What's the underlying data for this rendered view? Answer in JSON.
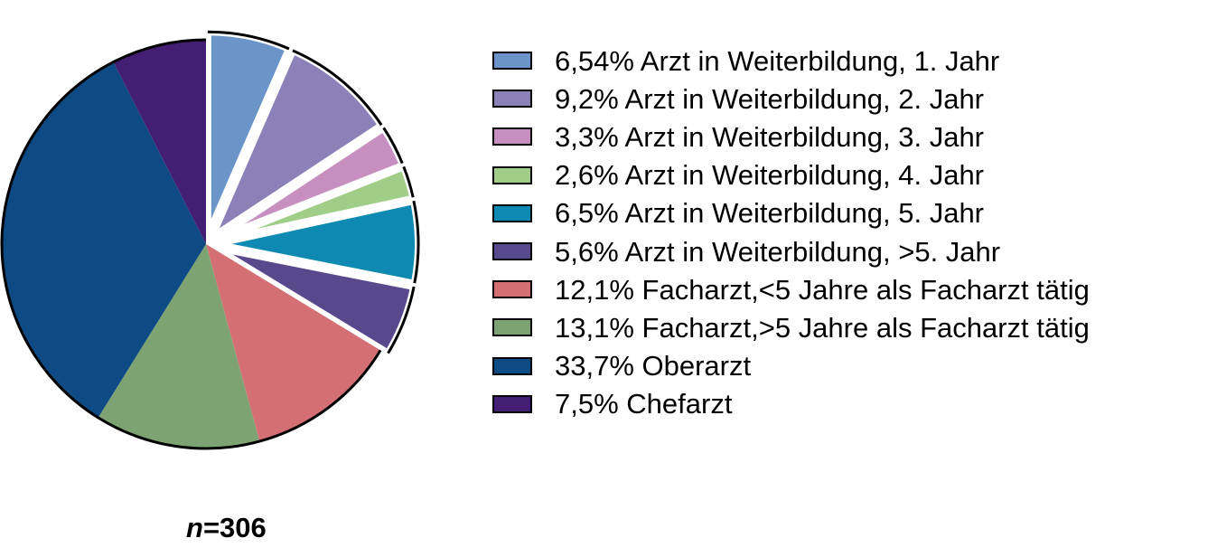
{
  "chart_data": {
    "type": "pie",
    "title": "",
    "note": "n=306",
    "n_prefix": "n",
    "n_value": "=306",
    "slices": [
      {
        "label": "6,54% Arzt in Weiterbildung, 1. Jahr",
        "value": 6.54,
        "color": "#6b95c9",
        "exploded": true
      },
      {
        "label": "9,2% Arzt in Weiterbildung, 2. Jahr",
        "value": 9.2,
        "color": "#8b80b8",
        "exploded": true
      },
      {
        "label": "3,3% Arzt in Weiterbildung, 3. Jahr",
        "value": 3.3,
        "color": "#c68fc0",
        "exploded": true
      },
      {
        "label": "2,6% Arzt in Weiterbildung, 4. Jahr",
        "value": 2.6,
        "color": "#a0ce88",
        "exploded": true
      },
      {
        "label": "6,5% Arzt in Weiterbildung, 5. Jahr",
        "value": 6.5,
        "color": "#0e8ab2",
        "exploded": true
      },
      {
        "label": "5,6% Arzt in Weiterbildung, >5. Jahr",
        "value": 5.6,
        "color": "#58488c",
        "exploded": true
      },
      {
        "label": "12,1% Facharzt,<5 Jahre als Facharzt tätig",
        "value": 12.1,
        "color": "#d46f74",
        "exploded": false
      },
      {
        "label": "13,1% Facharzt,>5 Jahre als Facharzt tätig",
        "value": 13.1,
        "color": "#7ea372",
        "exploded": false
      },
      {
        "label": "33,7% Oberarzt",
        "value": 33.7,
        "color": "#0e4a84",
        "exploded": false
      },
      {
        "label": "7,5% Chefarzt",
        "value": 7.5,
        "color": "#441e72",
        "exploded": false
      }
    ]
  }
}
